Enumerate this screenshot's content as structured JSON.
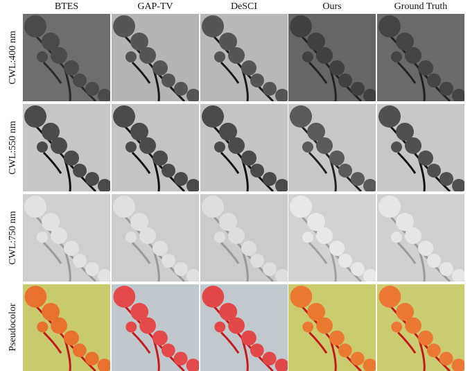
{
  "columns": [
    "BTES",
    "GAP-TV",
    "DeSCI",
    "Ours",
    "Ground Truth"
  ],
  "rows": [
    "CWL:400 nm",
    "CWL:550 nm",
    "CWL:750 nm",
    "Pseudocolor"
  ]
}
